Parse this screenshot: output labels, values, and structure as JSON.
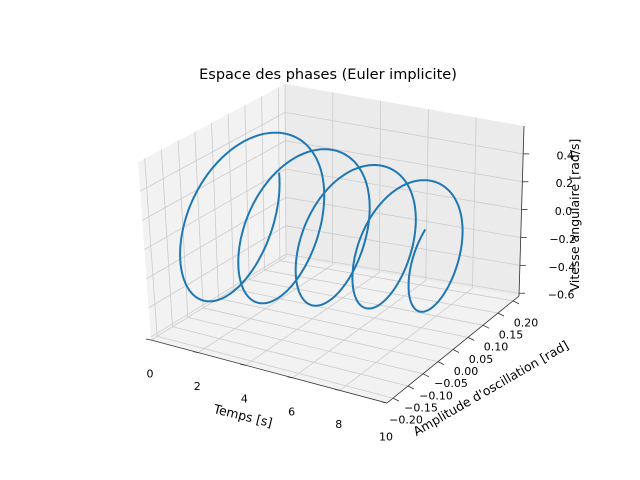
{
  "chart_data": {
    "type": "line3d",
    "title": "Espace des phases (Euler implicite)",
    "xlabel": "Temps [s]",
    "ylabel": "Amplitude d'oscillation [rad]",
    "zlabel": "Vitesse angulaire [rad/s]",
    "xlim": [
      0,
      10
    ],
    "ylim": [
      -0.22,
      0.22
    ],
    "zlim": [
      -0.62,
      0.6
    ],
    "x_ticks": [
      "0",
      "2",
      "4",
      "6",
      "8",
      "10"
    ],
    "y_ticks": [
      "−0.20",
      "−0.15",
      "−0.10",
      "−0.05",
      "0.00",
      "0.05",
      "0.10",
      "0.15",
      "0.20"
    ],
    "z_ticks": [
      "−0.6",
      "−0.4",
      "−0.2",
      "0.0",
      "0.2",
      "0.4"
    ],
    "grid": true,
    "series": [
      {
        "color": "#1f77b4",
        "model": {
          "t_start": 0,
          "t_end": 10,
          "initial_amplitude": 0.2,
          "angular_frequency": 2.9,
          "damping": 0.05
        }
      }
    ]
  }
}
